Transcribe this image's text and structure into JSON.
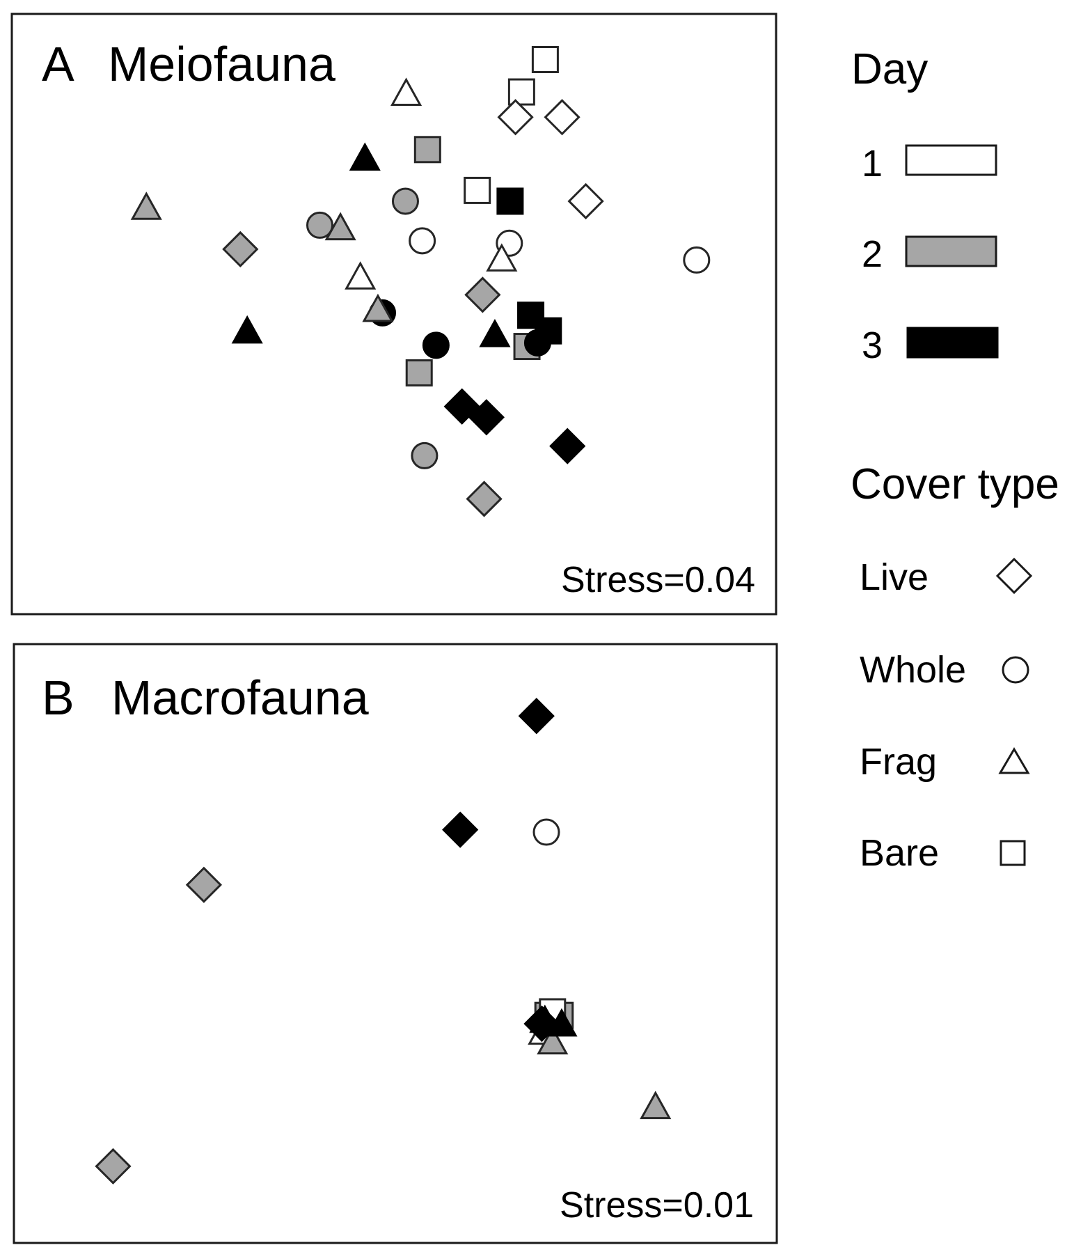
{
  "colors": {
    "day1": "#ffffff",
    "day2": "#a6a6a6",
    "day3": "#000000",
    "stroke": "#262626"
  },
  "chart_data": [
    {
      "type": "scatter",
      "panel": "A",
      "title": "Meiofauna",
      "stress": "Stress=0.04",
      "xlabel": "",
      "ylabel": "",
      "axes_visible": false,
      "xlim": [
        0,
        100
      ],
      "ylim": [
        0,
        100
      ],
      "points": [
        {
          "x": 69.8,
          "y": 92.4,
          "shape": "square",
          "day": 1
        },
        {
          "x": 66.7,
          "y": 87.0,
          "shape": "square",
          "day": 1
        },
        {
          "x": 51.6,
          "y": 86.6,
          "shape": "triangle",
          "day": 1
        },
        {
          "x": 65.9,
          "y": 82.8,
          "shape": "diamond",
          "day": 1
        },
        {
          "x": 72.0,
          "y": 82.8,
          "shape": "diamond",
          "day": 1
        },
        {
          "x": 54.4,
          "y": 77.4,
          "shape": "square",
          "day": 2
        },
        {
          "x": 46.2,
          "y": 75.8,
          "shape": "triangle",
          "day": 3
        },
        {
          "x": 60.9,
          "y": 70.6,
          "shape": "square",
          "day": 1
        },
        {
          "x": 65.2,
          "y": 68.8,
          "shape": "square",
          "day": 3
        },
        {
          "x": 51.5,
          "y": 68.8,
          "shape": "circle",
          "day": 2
        },
        {
          "x": 75.1,
          "y": 68.8,
          "shape": "diamond",
          "day": 1
        },
        {
          "x": 17.6,
          "y": 67.6,
          "shape": "triangle",
          "day": 2
        },
        {
          "x": 40.3,
          "y": 64.8,
          "shape": "circle",
          "day": 2
        },
        {
          "x": 43.0,
          "y": 64.2,
          "shape": "triangle",
          "day": 2
        },
        {
          "x": 53.7,
          "y": 62.2,
          "shape": "circle",
          "day": 1
        },
        {
          "x": 65.1,
          "y": 61.8,
          "shape": "circle",
          "day": 1
        },
        {
          "x": 89.6,
          "y": 59.0,
          "shape": "circle",
          "day": 1
        },
        {
          "x": 29.9,
          "y": 60.8,
          "shape": "diamond",
          "day": 2
        },
        {
          "x": 64.1,
          "y": 59.0,
          "shape": "triangle",
          "day": 1
        },
        {
          "x": 45.6,
          "y": 56.0,
          "shape": "triangle",
          "day": 1
        },
        {
          "x": 61.6,
          "y": 53.2,
          "shape": "diamond",
          "day": 2
        },
        {
          "x": 48.5,
          "y": 50.2,
          "shape": "circle",
          "day": 3
        },
        {
          "x": 47.9,
          "y": 50.6,
          "shape": "triangle",
          "day": 2
        },
        {
          "x": 67.9,
          "y": 49.8,
          "shape": "square",
          "day": 3
        },
        {
          "x": 30.8,
          "y": 47.0,
          "shape": "triangle",
          "day": 3
        },
        {
          "x": 63.2,
          "y": 46.4,
          "shape": "triangle",
          "day": 3
        },
        {
          "x": 70.2,
          "y": 47.2,
          "shape": "square",
          "day": 3
        },
        {
          "x": 67.4,
          "y": 44.6,
          "shape": "square",
          "day": 2
        },
        {
          "x": 68.8,
          "y": 45.2,
          "shape": "circle",
          "day": 3
        },
        {
          "x": 55.5,
          "y": 44.8,
          "shape": "circle",
          "day": 3
        },
        {
          "x": 53.3,
          "y": 40.2,
          "shape": "square",
          "day": 2
        },
        {
          "x": 58.9,
          "y": 34.6,
          "shape": "diamond",
          "day": 3
        },
        {
          "x": 62.1,
          "y": 32.8,
          "shape": "diamond",
          "day": 3
        },
        {
          "x": 72.7,
          "y": 28.0,
          "shape": "diamond",
          "day": 3
        },
        {
          "x": 54.0,
          "y": 26.4,
          "shape": "circle",
          "day": 2
        },
        {
          "x": 61.8,
          "y": 19.2,
          "shape": "diamond",
          "day": 2
        }
      ]
    },
    {
      "type": "scatter",
      "panel": "B",
      "title": "Macrofauna",
      "stress": "Stress=0.01",
      "xlabel": "",
      "ylabel": "",
      "axes_visible": false,
      "xlim": [
        0,
        100
      ],
      "ylim": [
        0,
        100
      ],
      "points": [
        {
          "x": 68.5,
          "y": 88.0,
          "shape": "diamond",
          "day": 3
        },
        {
          "x": 58.5,
          "y": 69.0,
          "shape": "diamond",
          "day": 3
        },
        {
          "x": 69.8,
          "y": 68.6,
          "shape": "circle",
          "day": 1
        },
        {
          "x": 24.9,
          "y": 59.8,
          "shape": "diamond",
          "day": 2
        },
        {
          "x": 70.0,
          "y": 38.0,
          "shape": "square",
          "day": 2
        },
        {
          "x": 71.6,
          "y": 38.0,
          "shape": "square",
          "day": 2
        },
        {
          "x": 70.6,
          "y": 38.6,
          "shape": "square",
          "day": 1
        },
        {
          "x": 69.4,
          "y": 35.0,
          "shape": "triangle",
          "day": 1
        },
        {
          "x": 70.6,
          "y": 33.4,
          "shape": "triangle",
          "day": 2
        },
        {
          "x": 71.8,
          "y": 36.4,
          "shape": "triangle",
          "day": 3
        },
        {
          "x": 69.6,
          "y": 37.0,
          "shape": "triangle",
          "day": 3
        },
        {
          "x": 69.2,
          "y": 36.6,
          "shape": "diamond",
          "day": 3
        },
        {
          "x": 84.1,
          "y": 22.6,
          "shape": "triangle",
          "day": 2
        },
        {
          "x": 13.0,
          "y": 12.8,
          "shape": "diamond",
          "day": 2
        }
      ]
    }
  ],
  "legend": {
    "day_title": "Day",
    "days": [
      {
        "label": "1",
        "fill": "#ffffff"
      },
      {
        "label": "2",
        "fill": "#a6a6a6"
      },
      {
        "label": "3",
        "fill": "#000000"
      }
    ],
    "cover_title": "Cover type",
    "covers": [
      {
        "label": "Live",
        "shape": "diamond",
        "icon": "diamond-icon"
      },
      {
        "label": "Whole",
        "shape": "circle",
        "icon": "circle-icon"
      },
      {
        "label": "Frag",
        "shape": "triangle",
        "icon": "triangle-icon"
      },
      {
        "label": "Bare",
        "shape": "square",
        "icon": "square-icon"
      }
    ]
  }
}
